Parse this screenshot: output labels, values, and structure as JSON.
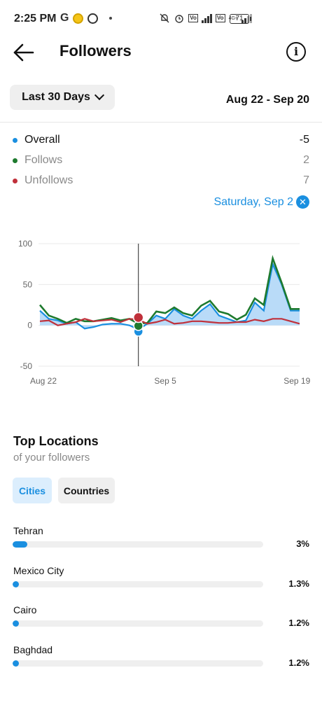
{
  "status_bar": {
    "time": "2:25 PM",
    "g_label": "G",
    "battery": "71",
    "network_label": "4G+"
  },
  "header": {
    "title": "Followers",
    "back_icon": "arrow-left-icon",
    "info_icon": "info-icon",
    "info_glyph": "i"
  },
  "range": {
    "selector_label": "Last 30 Days",
    "date_range": "Aug 22 - Sep 20"
  },
  "legend": [
    {
      "label": "Overall",
      "value": "-5",
      "color": "#1a8fe0",
      "text_color": "#111111"
    },
    {
      "label": "Follows",
      "value": "2",
      "color": "#1e7a2e",
      "text_color": "#8a8a8a"
    },
    {
      "label": "Unfollows",
      "value": "7",
      "color": "#c0303a",
      "text_color": "#8a8a8a"
    }
  ],
  "selected_date": {
    "label": "Saturday, Sep 2",
    "clear_glyph": "✕"
  },
  "chart_data": {
    "type": "line",
    "x": [
      "Aug 22",
      "Aug 23",
      "Aug 24",
      "Aug 25",
      "Aug 26",
      "Aug 27",
      "Aug 28",
      "Aug 29",
      "Aug 30",
      "Aug 31",
      "Sep 1",
      "Sep 2",
      "Sep 3",
      "Sep 4",
      "Sep 5",
      "Sep 6",
      "Sep 7",
      "Sep 8",
      "Sep 9",
      "Sep 10",
      "Sep 11",
      "Sep 12",
      "Sep 13",
      "Sep 14",
      "Sep 15",
      "Sep 16",
      "Sep 17",
      "Sep 18",
      "Sep 19",
      "Sep 20"
    ],
    "x_tick_labels": [
      "Aug 22",
      "Sep 5",
      "Sep 19"
    ],
    "y_ticks": [
      100,
      50,
      0,
      -50
    ],
    "ylim": [
      -50,
      100
    ],
    "grid": true,
    "selected_x": "Sep 2",
    "series": [
      {
        "name": "Overall",
        "color": "#1a8fe0",
        "fill": "#b9dbf8",
        "values": [
          18,
          8,
          6,
          2,
          4,
          -4,
          -2,
          1,
          2,
          2,
          0,
          -5,
          2,
          12,
          8,
          20,
          12,
          8,
          18,
          26,
          12,
          8,
          4,
          6,
          28,
          18,
          75,
          50,
          18,
          18
        ]
      },
      {
        "name": "Follows",
        "color": "#1e7a2e",
        "values": [
          25,
          12,
          8,
          3,
          8,
          5,
          5,
          7,
          9,
          6,
          8,
          2,
          3,
          17,
          15,
          22,
          15,
          12,
          24,
          30,
          17,
          14,
          7,
          13,
          33,
          25,
          82,
          52,
          20,
          20
        ]
      },
      {
        "name": "Unfollows",
        "color": "#c0303a",
        "values": [
          5,
          6,
          0,
          2,
          4,
          8,
          5,
          6,
          7,
          4,
          8,
          7,
          2,
          4,
          7,
          2,
          3,
          5,
          5,
          4,
          3,
          3,
          4,
          4,
          7,
          5,
          8,
          8,
          5,
          2
        ]
      }
    ]
  },
  "top_locations": {
    "title": "Top Locations",
    "subtitle": "of your followers",
    "tabs": [
      {
        "label": "Cities",
        "active": true
      },
      {
        "label": "Countries",
        "active": false
      }
    ],
    "items": [
      {
        "name": "Tehran",
        "pct": "3%",
        "fraction": 0.03
      },
      {
        "name": "Mexico City",
        "pct": "1.3%",
        "fraction": 0.013
      },
      {
        "name": "Cairo",
        "pct": "1.2%",
        "fraction": 0.012
      },
      {
        "name": "Baghdad",
        "pct": "1.2%",
        "fraction": 0.012
      }
    ]
  }
}
